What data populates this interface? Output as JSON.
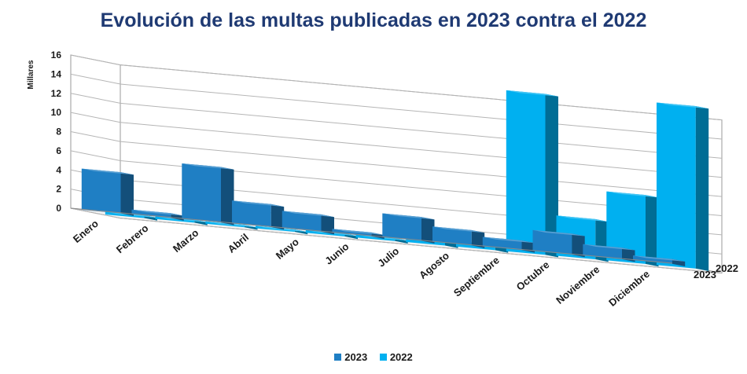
{
  "chart_data": {
    "type": "bar",
    "title": "Evolución de las multas publicadas en 2023 contra el 2022",
    "ylabel": "Millares",
    "xlabel": "",
    "ylim": [
      0,
      16
    ],
    "y_ticks": [
      "0",
      "2",
      "4",
      "6",
      "8",
      "10",
      "12",
      "14",
      "16"
    ],
    "categories": [
      "Enero",
      "Febrero",
      "Marzo",
      "Abril",
      "Mayo",
      "Junio",
      "Julio",
      "Agosto",
      "Septiembre",
      "Octubre",
      "Noviembre",
      "Diciembre"
    ],
    "series": [
      {
        "name": "2023",
        "color": "#1f7fc4",
        "values": [
          4.3,
          0.5,
          5.8,
          2.4,
          1.8,
          0.4,
          2.5,
          1.6,
          1.0,
          2.2,
          1.2,
          0.5
        ]
      },
      {
        "name": "2022",
        "color": "#00b0f0",
        "values": [
          0.3,
          0.3,
          0.0,
          0.0,
          0.3,
          0.3,
          0.5,
          0.6,
          16.8,
          4.2,
          7.2,
          17.0
        ]
      }
    ],
    "depth_labels": [
      "2022",
      "2023"
    ],
    "legend_position": "bottom",
    "grid": true
  }
}
